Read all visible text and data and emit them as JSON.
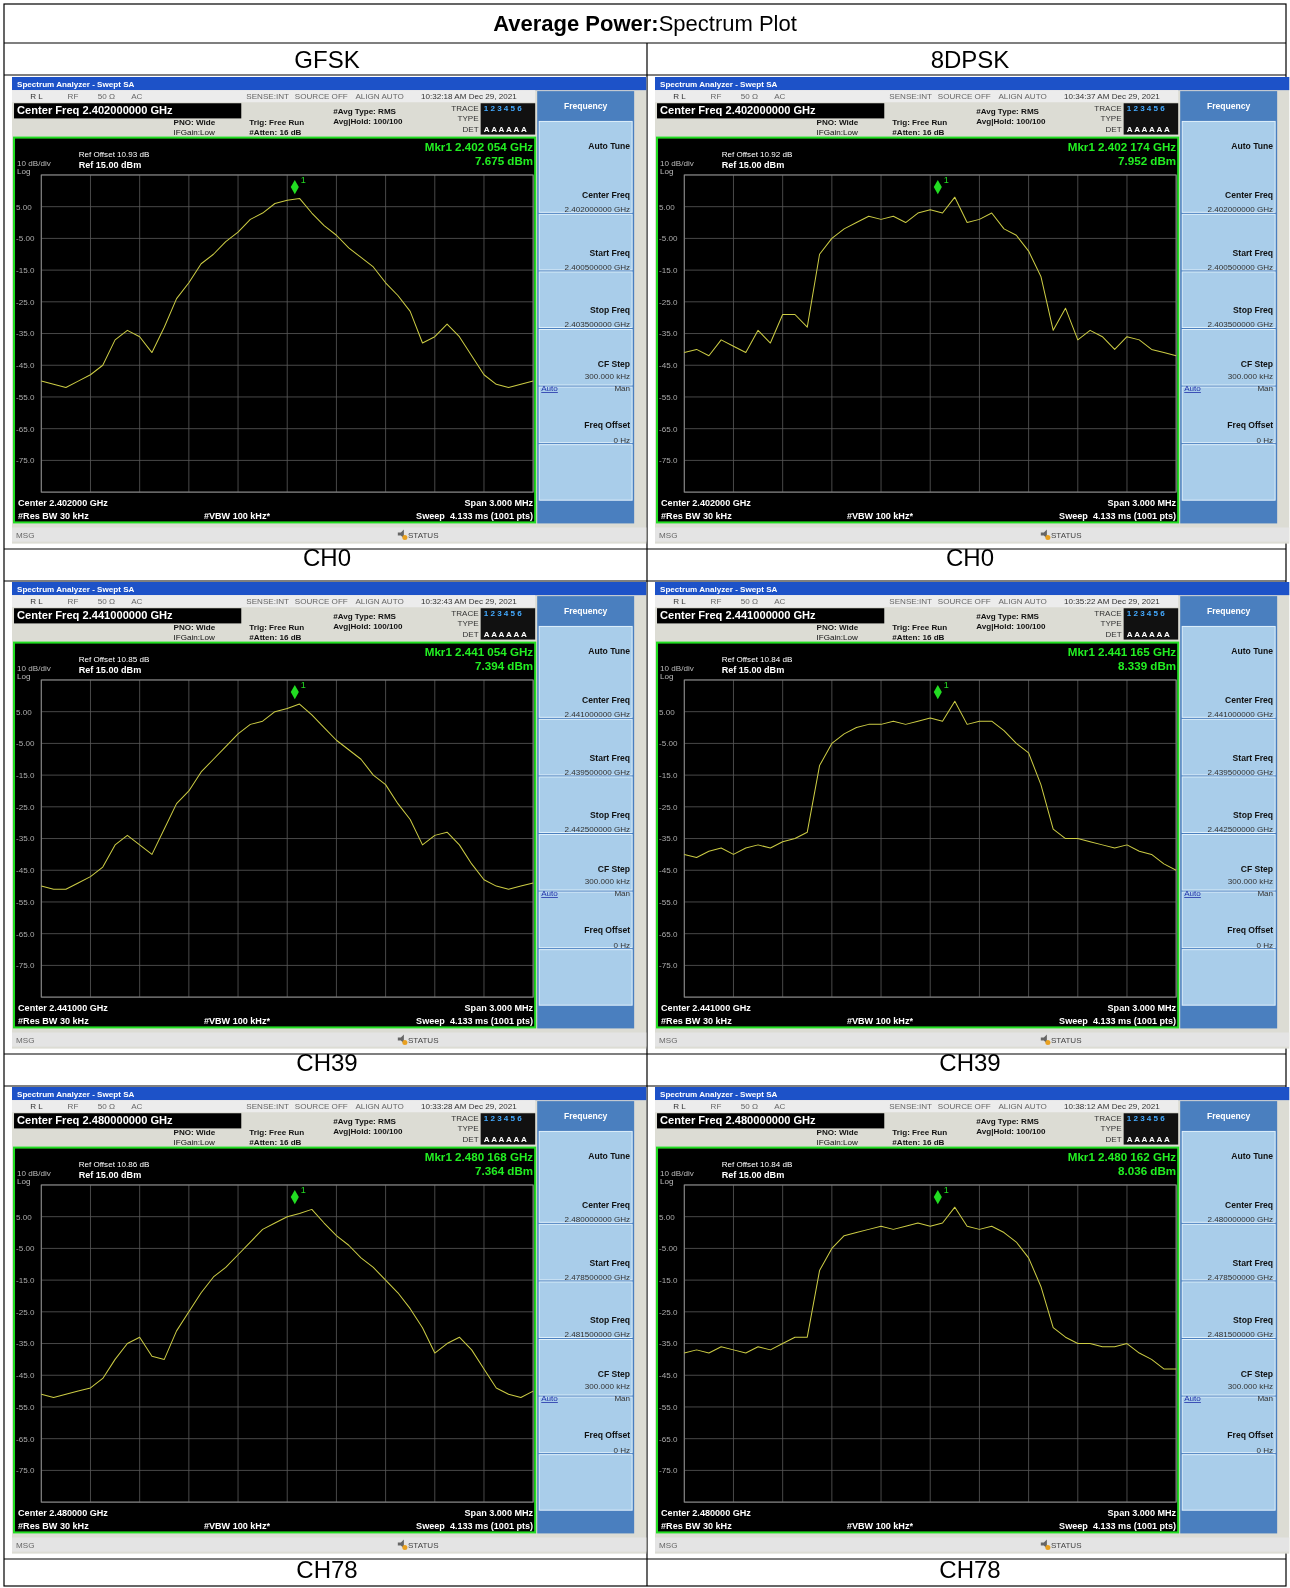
{
  "chart_data": [
    {
      "type": "line",
      "title": "Average Power:Spectrum Plot",
      "subtitle": "GFSK",
      "xlabel": "CH0",
      "color": "#cccc44",
      "categories": [
        null,
        null,
        null,
        null,
        null,
        null,
        null,
        null,
        null,
        null,
        null,
        null,
        null,
        null,
        null,
        null,
        null,
        null,
        null,
        null,
        null,
        null,
        null,
        null,
        null,
        null,
        null,
        null,
        null,
        null,
        null,
        null,
        null,
        null,
        null,
        null,
        null,
        null,
        null,
        null,
        null
      ],
      "values": [
        -50,
        -51,
        -52,
        -50,
        -48,
        -45,
        -37,
        -34,
        -36,
        -41,
        -33,
        -24,
        -19,
        -13,
        -10,
        -6,
        -3,
        1,
        3,
        6,
        7,
        7.6,
        3,
        -1,
        -4,
        -8,
        -11,
        -14,
        -19,
        -23,
        -28,
        -38,
        -36,
        -32,
        -36,
        -42,
        -48,
        -51,
        -52,
        -51,
        -50
      ],
      "ylim": [
        -85,
        15
      ],
      "yticks": [
        {
          "value": 15,
          "label": null
        },
        {
          "value": 5,
          "label": "5.00"
        },
        {
          "value": -5,
          "label": "-5.00"
        },
        {
          "value": -15,
          "label": "-15.0"
        },
        {
          "value": -25,
          "label": "-25.0"
        },
        {
          "value": -35,
          "label": "-35.0"
        },
        {
          "value": -45,
          "label": "-45.0"
        },
        {
          "value": -55,
          "label": "-55.0"
        },
        {
          "value": -65,
          "label": "-65.0"
        },
        {
          "value": -75,
          "label": "-75.0"
        },
        {
          "value": -85,
          "label": null
        }
      ],
      "grid": true,
      "annotations": [
        "Spectrum Analyzer - Swept SA",
        "R L",
        "RF",
        "50 Ω",
        "AC",
        "SENSE:INT",
        "SOURCE OFF",
        "ALIGN AUTO",
        "10:32:18 AM Dec 29, 2021",
        "Center Freq 2.402000000 GHz",
        "PNO: Wide",
        "IFGain:Low",
        "Trig: Free Run",
        "#Atten: 16 dB",
        "#Avg Type: RMS",
        "Avg|Hold: 100/100",
        "TRACE",
        "1 2 3 4 5 6",
        "TYPE",
        "DET",
        "A A A A A A",
        "Ref Offset 10.93 dB",
        "Ref 15.00 dBm",
        "10 dB/div",
        "Log",
        "Mkr1 2.402 054 GHz",
        "7.675 dBm",
        "Center 2.402000 GHz",
        "#Res BW 30 kHz",
        "#VBW 100 kHz*",
        "Span 3.000 MHz",
        "Sweep  4.133 ms (1001 pts)",
        "Frequency",
        "Auto Tune",
        "Center Freq",
        "2.402000000 GHz",
        "Start Freq",
        "2.400500000 GHz",
        "Stop Freq",
        "2.403500000 GHz",
        "CF Step",
        "300.000 kHz",
        "Auto",
        "Man",
        "Freq Offset",
        "0 Hz",
        "MSG",
        "STATUS",
        "1"
      ]
    },
    {
      "type": "line",
      "subtitle": "8DPSK",
      "xlabel": "CH0",
      "color": "#cccc44",
      "categories": [
        null,
        null,
        null,
        null,
        null,
        null,
        null,
        null,
        null,
        null,
        null,
        null,
        null,
        null,
        null,
        null,
        null,
        null,
        null,
        null,
        null,
        null,
        null,
        null,
        null,
        null,
        null,
        null,
        null,
        null,
        null,
        null,
        null,
        null,
        null,
        null,
        null,
        null,
        null,
        null,
        null
      ],
      "values": [
        -41,
        -40,
        -42,
        -37,
        -39,
        -41,
        -34,
        -38,
        -29,
        -29,
        -33,
        -10,
        -5,
        -2,
        0,
        2,
        1,
        2,
        0,
        3,
        4,
        3,
        8,
        0,
        1,
        3,
        -2,
        -4,
        -9,
        -17,
        -34,
        -27,
        -37,
        -34,
        -36,
        -40,
        -36,
        -37,
        -40,
        -41,
        -42
      ],
      "ylim": [
        -85,
        15
      ],
      "yticks": [
        {
          "value": 15,
          "label": null
        },
        {
          "value": 5,
          "label": "5.00"
        },
        {
          "value": -5,
          "label": "-5.00"
        },
        {
          "value": -15,
          "label": "-15.0"
        },
        {
          "value": -25,
          "label": "-25.0"
        },
        {
          "value": -35,
          "label": "-35.0"
        },
        {
          "value": -45,
          "label": "-45.0"
        },
        {
          "value": -55,
          "label": "-55.0"
        },
        {
          "value": -65,
          "label": "-65.0"
        },
        {
          "value": -75,
          "label": "-75.0"
        },
        {
          "value": -85,
          "label": null
        }
      ],
      "grid": true,
      "annotations": [
        "Spectrum Analyzer - Swept SA",
        "R L",
        "RF",
        "50 Ω",
        "AC",
        "SENSE:INT",
        "SOURCE OFF",
        "ALIGN AUTO",
        "10:34:37 AM Dec 29, 2021",
        "Center Freq 2.402000000 GHz",
        "PNO: Wide",
        "IFGain:Low",
        "Trig: Free Run",
        "#Atten: 16 dB",
        "#Avg Type: RMS",
        "Avg|Hold: 100/100",
        "TRACE",
        "1 2 3 4 5 6",
        "TYPE",
        "DET",
        "A A A A A A",
        "Ref Offset 10.92 dB",
        "Ref 15.00 dBm",
        "10 dB/div",
        "Log",
        "Mkr1 2.402 174 GHz",
        "7.952 dBm",
        "Center 2.402000 GHz",
        "#Res BW 30 kHz",
        "#VBW 100 kHz*",
        "Span 3.000 MHz",
        "Sweep  4.133 ms (1001 pts)",
        "Frequency",
        "Auto Tune",
        "Center Freq",
        "2.402000000 GHz",
        "Start Freq",
        "2.400500000 GHz",
        "Stop Freq",
        "2.403500000 GHz",
        "CF Step",
        "300.000 kHz",
        "Auto",
        "Man",
        "Freq Offset",
        "0 Hz",
        "MSG",
        "STATUS",
        "1"
      ]
    },
    {
      "type": "line",
      "xlabel": "CH39",
      "color": "#cccc44",
      "categories": [
        null,
        null,
        null,
        null,
        null,
        null,
        null,
        null,
        null,
        null,
        null,
        null,
        null,
        null,
        null,
        null,
        null,
        null,
        null,
        null,
        null,
        null,
        null,
        null,
        null,
        null,
        null,
        null,
        null,
        null,
        null,
        null,
        null,
        null,
        null,
        null,
        null,
        null,
        null,
        null,
        null
      ],
      "values": [
        -50,
        -51,
        -51,
        -49,
        -47,
        -44,
        -37,
        -34,
        -37,
        -40,
        -32,
        -24,
        -20,
        -14,
        -10,
        -6,
        -2,
        1,
        2,
        5,
        6,
        7.4,
        4,
        0,
        -4,
        -7,
        -10,
        -15,
        -18,
        -24,
        -29,
        -37,
        -34,
        -33,
        -37,
        -43,
        -48,
        -50,
        -51,
        -50,
        -49
      ],
      "ylim": [
        -85,
        15
      ],
      "yticks": [
        {
          "value": 15,
          "label": null
        },
        {
          "value": 5,
          "label": "5.00"
        },
        {
          "value": -5,
          "label": "-5.00"
        },
        {
          "value": -15,
          "label": "-15.0"
        },
        {
          "value": -25,
          "label": "-25.0"
        },
        {
          "value": -35,
          "label": "-35.0"
        },
        {
          "value": -45,
          "label": "-45.0"
        },
        {
          "value": -55,
          "label": "-55.0"
        },
        {
          "value": -65,
          "label": "-65.0"
        },
        {
          "value": -75,
          "label": "-75.0"
        },
        {
          "value": -85,
          "label": null
        }
      ],
      "grid": true,
      "annotations": [
        "Spectrum Analyzer - Swept SA",
        "R L",
        "RF",
        "50 Ω",
        "AC",
        "SENSE:INT",
        "SOURCE OFF",
        "ALIGN AUTO",
        "10:32:43 AM Dec 29, 2021",
        "Center Freq 2.441000000 GHz",
        "PNO: Wide",
        "IFGain:Low",
        "Trig: Free Run",
        "#Atten: 16 dB",
        "#Avg Type: RMS",
        "Avg|Hold: 100/100",
        "TRACE",
        "1 2 3 4 5 6",
        "TYPE",
        "DET",
        "A A A A A A",
        "Ref Offset 10.85 dB",
        "Ref 15.00 dBm",
        "10 dB/div",
        "Log",
        "Mkr1 2.441 054 GHz",
        "7.394 dBm",
        "Center 2.441000 GHz",
        "#Res BW 30 kHz",
        "#VBW 100 kHz*",
        "Span 3.000 MHz",
        "Sweep  4.133 ms (1001 pts)",
        "Frequency",
        "Auto Tune",
        "Center Freq",
        "2.441000000 GHz",
        "Start Freq",
        "2.439500000 GHz",
        "Stop Freq",
        "2.442500000 GHz",
        "CF Step",
        "300.000 kHz",
        "Auto",
        "Man",
        "Freq Offset",
        "0 Hz",
        "MSG",
        "STATUS",
        "1"
      ]
    },
    {
      "type": "line",
      "xlabel": "CH39",
      "color": "#cccc44",
      "categories": [
        null,
        null,
        null,
        null,
        null,
        null,
        null,
        null,
        null,
        null,
        null,
        null,
        null,
        null,
        null,
        null,
        null,
        null,
        null,
        null,
        null,
        null,
        null,
        null,
        null,
        null,
        null,
        null,
        null,
        null,
        null,
        null,
        null,
        null,
        null,
        null,
        null,
        null,
        null,
        null,
        null
      ],
      "values": [
        -40,
        -41,
        -39,
        -38,
        -40,
        -38,
        -37,
        -38,
        -36,
        -35,
        -33,
        -12,
        -5,
        -2,
        0,
        1,
        1,
        2,
        1,
        2,
        3,
        2,
        8.3,
        1,
        2,
        2,
        -1,
        -5,
        -8,
        -18,
        -32,
        -35,
        -35,
        -36,
        -37,
        -38,
        -37,
        -39,
        -40,
        -43,
        -45
      ],
      "ylim": [
        -85,
        15
      ],
      "yticks": [
        {
          "value": 15,
          "label": null
        },
        {
          "value": 5,
          "label": "5.00"
        },
        {
          "value": -5,
          "label": "-5.00"
        },
        {
          "value": -15,
          "label": "-15.0"
        },
        {
          "value": -25,
          "label": "-25.0"
        },
        {
          "value": -35,
          "label": "-35.0"
        },
        {
          "value": -45,
          "label": "-45.0"
        },
        {
          "value": -55,
          "label": "-55.0"
        },
        {
          "value": -65,
          "label": "-65.0"
        },
        {
          "value": -75,
          "label": "-75.0"
        },
        {
          "value": -85,
          "label": null
        }
      ],
      "grid": true,
      "annotations": [
        "Spectrum Analyzer - Swept SA",
        "R L",
        "RF",
        "50 Ω",
        "AC",
        "SENSE:INT",
        "SOURCE OFF",
        "ALIGN AUTO",
        "10:35:22 AM Dec 29, 2021",
        "Center Freq 2.441000000 GHz",
        "PNO: Wide",
        "IFGain:Low",
        "Trig: Free Run",
        "#Atten: 16 dB",
        "#Avg Type: RMS",
        "Avg|Hold: 100/100",
        "TRACE",
        "1 2 3 4 5 6",
        "TYPE",
        "DET",
        "A A A A A A",
        "Ref Offset 10.84 dB",
        "Ref 15.00 dBm",
        "10 dB/div",
        "Log",
        "Mkr1 2.441 165 GHz",
        "8.339 dBm",
        "Center 2.441000 GHz",
        "#Res BW 30 kHz",
        "#VBW 100 kHz*",
        "Span 3.000 MHz",
        "Sweep  4.133 ms (1001 pts)",
        "Frequency",
        "Auto Tune",
        "Center Freq",
        "2.441000000 GHz",
        "Start Freq",
        "2.439500000 GHz",
        "Stop Freq",
        "2.442500000 GHz",
        "CF Step",
        "300.000 kHz",
        "Auto",
        "Man",
        "Freq Offset",
        "0 Hz",
        "MSG",
        "STATUS",
        "1"
      ]
    },
    {
      "type": "line",
      "xlabel": "CH78",
      "color": "#cccc44",
      "categories": [
        null,
        null,
        null,
        null,
        null,
        null,
        null,
        null,
        null,
        null,
        null,
        null,
        null,
        null,
        null,
        null,
        null,
        null,
        null,
        null,
        null,
        null,
        null,
        null,
        null,
        null,
        null,
        null,
        null,
        null,
        null,
        null,
        null,
        null,
        null,
        null,
        null,
        null,
        null,
        null,
        null
      ],
      "values": [
        -51,
        -52,
        -51,
        -50,
        -49,
        -46,
        -40,
        -35,
        -33,
        -39,
        -40,
        -31,
        -25,
        -19,
        -14,
        -11,
        -7,
        -3,
        1,
        3,
        5,
        6,
        7.3,
        3,
        -1,
        -4,
        -8,
        -11,
        -15,
        -19,
        -24,
        -30,
        -38,
        -35,
        -33,
        -37,
        -43,
        -49,
        -51,
        -52,
        -50
      ],
      "ylim": [
        -85,
        15
      ],
      "yticks": [
        {
          "value": 15,
          "label": null
        },
        {
          "value": 5,
          "label": "5.00"
        },
        {
          "value": -5,
          "label": "-5.00"
        },
        {
          "value": -15,
          "label": "-15.0"
        },
        {
          "value": -25,
          "label": "-25.0"
        },
        {
          "value": -35,
          "label": "-35.0"
        },
        {
          "value": -45,
          "label": "-45.0"
        },
        {
          "value": -55,
          "label": "-55.0"
        },
        {
          "value": -65,
          "label": "-65.0"
        },
        {
          "value": -75,
          "label": "-75.0"
        },
        {
          "value": -85,
          "label": null
        }
      ],
      "grid": true,
      "annotations": [
        "Spectrum Analyzer - Swept SA",
        "R L",
        "RF",
        "50 Ω",
        "AC",
        "SENSE:INT",
        "SOURCE OFF",
        "ALIGN AUTO",
        "10:33:28 AM Dec 29, 2021",
        "Center Freq 2.480000000 GHz",
        "PNO: Wide",
        "IFGain:Low",
        "Trig: Free Run",
        "#Atten: 16 dB",
        "#Avg Type: RMS",
        "Avg|Hold: 100/100",
        "TRACE",
        "1 2 3 4 5 6",
        "TYPE",
        "DET",
        "A A A A A A",
        "Ref Offset 10.86 dB",
        "Ref 15.00 dBm",
        "10 dB/div",
        "Log",
        "Mkr1 2.480 168 GHz",
        "7.364 dBm",
        "Center 2.480000 GHz",
        "#Res BW 30 kHz",
        "#VBW 100 kHz*",
        "Span 3.000 MHz",
        "Sweep  4.133 ms (1001 pts)",
        "Frequency",
        "Auto Tune",
        "Center Freq",
        "2.480000000 GHz",
        "Start Freq",
        "2.478500000 GHz",
        "Stop Freq",
        "2.481500000 GHz",
        "CF Step",
        "300.000 kHz",
        "Auto",
        "Man",
        "Freq Offset",
        "0 Hz",
        "MSG",
        "STATUS",
        "1"
      ]
    },
    {
      "type": "line",
      "xlabel": "CH78",
      "color": "#cccc44",
      "categories": [
        null,
        null,
        null,
        null,
        null,
        null,
        null,
        null,
        null,
        null,
        null,
        null,
        null,
        null,
        null,
        null,
        null,
        null,
        null,
        null,
        null,
        null,
        null,
        null,
        null,
        null,
        null,
        null,
        null,
        null,
        null,
        null,
        null,
        null,
        null,
        null,
        null,
        null,
        null,
        null,
        null
      ],
      "values": [
        -38,
        -37,
        -38,
        -36,
        -37,
        -38,
        -36,
        -37,
        -35,
        -33,
        -33,
        -12,
        -5,
        -1,
        0,
        1,
        2,
        1,
        2,
        3,
        2,
        3,
        8,
        2,
        1,
        2,
        0,
        -3,
        -8,
        -17,
        -30,
        -33,
        -35,
        -35,
        -36,
        -36,
        -35,
        -38,
        -40,
        -43,
        -43
      ],
      "ylim": [
        -85,
        15
      ],
      "yticks": [
        {
          "value": 15,
          "label": null
        },
        {
          "value": 5,
          "label": "5.00"
        },
        {
          "value": -5,
          "label": "-5.00"
        },
        {
          "value": -15,
          "label": "-15.0"
        },
        {
          "value": -25,
          "label": "-25.0"
        },
        {
          "value": -35,
          "label": "-35.0"
        },
        {
          "value": -45,
          "label": "-45.0"
        },
        {
          "value": -55,
          "label": "-55.0"
        },
        {
          "value": -65,
          "label": "-65.0"
        },
        {
          "value": -75,
          "label": "-75.0"
        },
        {
          "value": -85,
          "label": null
        }
      ],
      "grid": true,
      "annotations": [
        "Spectrum Analyzer - Swept SA",
        "R L",
        "RF",
        "50 Ω",
        "AC",
        "SENSE:INT",
        "SOURCE OFF",
        "ALIGN AUTO",
        "10:38:12 AM Dec 29, 2021",
        "Center Freq 2.480000000 GHz",
        "PNO: Wide",
        "IFGain:Low",
        "Trig: Free Run",
        "#Atten: 16 dB",
        "#Avg Type: RMS",
        "Avg|Hold: 100/100",
        "TRACE",
        "1 2 3 4 5 6",
        "TYPE",
        "DET",
        "A A A A A A",
        "Ref Offset 10.84 dB",
        "Ref 15.00 dBm",
        "10 dB/div",
        "Log",
        "Mkr1 2.480 162 GHz",
        "8.036 dBm",
        "Center 2.480000 GHz",
        "#Res BW 30 kHz",
        "#VBW 100 kHz*",
        "Span 3.000 MHz",
        "Sweep  4.133 ms (1001 pts)",
        "Frequency",
        "Auto Tune",
        "Center Freq",
        "2.480000000 GHz",
        "Start Freq",
        "2.478500000 GHz",
        "Stop Freq",
        "2.481500000 GHz",
        "CF Step",
        "300.000 kHz",
        "Auto",
        "Man",
        "Freq Offset",
        "0 Hz",
        "MSG",
        "STATUS",
        "1"
      ]
    }
  ]
}
